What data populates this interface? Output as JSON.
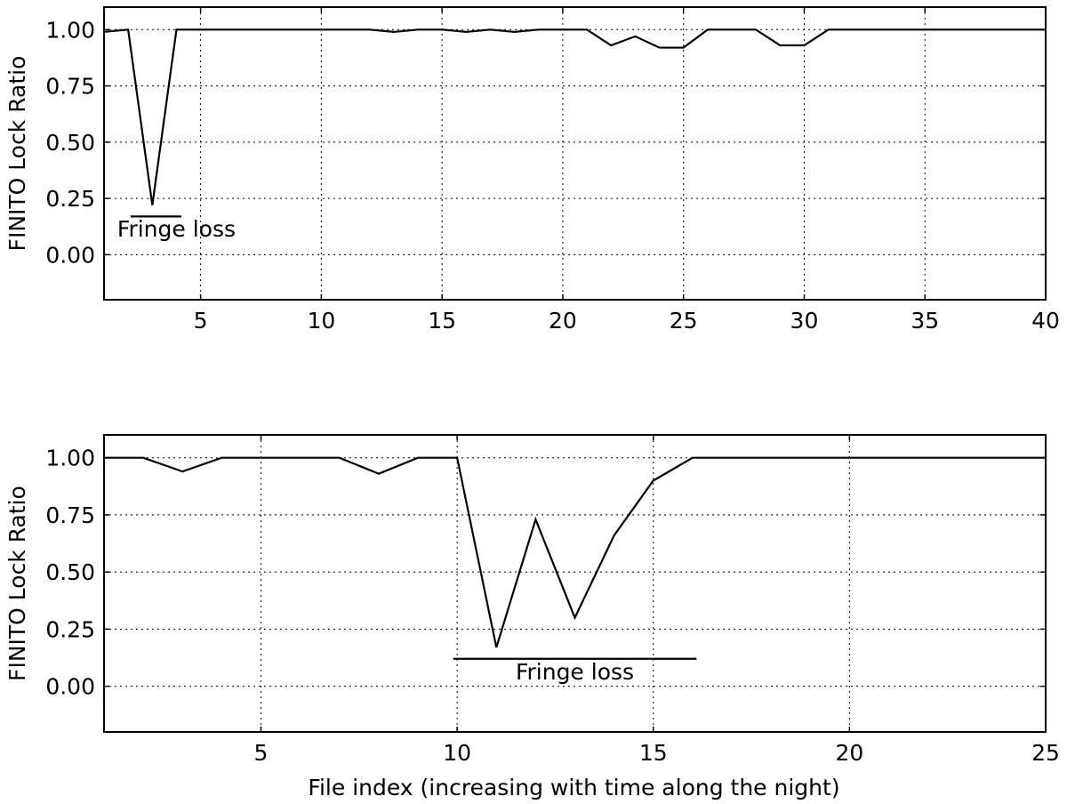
{
  "chart_data": [
    {
      "type": "line",
      "title": "",
      "xlabel": "",
      "ylabel": "FINITO Lock Ratio",
      "xlim": [
        1,
        40
      ],
      "ylim": [
        -0.2,
        1.1
      ],
      "xticks": [
        5,
        10,
        15,
        20,
        25,
        30,
        35,
        40
      ],
      "xtick_labels": [
        "5",
        "10",
        "15",
        "20",
        "25",
        "30",
        "35",
        "40"
      ],
      "yticks": [
        0.0,
        0.25,
        0.5,
        0.75,
        1.0
      ],
      "ytick_labels": [
        "0.00",
        "0.25",
        "0.50",
        "0.75",
        "1.00"
      ],
      "grid": true,
      "series": [
        {
          "x": [
            1,
            2,
            3,
            4,
            5,
            6,
            7,
            8,
            9,
            10,
            11,
            12,
            13,
            14,
            15,
            16,
            17,
            18,
            19,
            20,
            21,
            22,
            23,
            24,
            25,
            26,
            27,
            28,
            29,
            30,
            31,
            32,
            33,
            34,
            35,
            36,
            37,
            38,
            39,
            40
          ],
          "values": [
            0.99,
            1.0,
            0.22,
            1.0,
            1.0,
            1.0,
            1.0,
            1.0,
            1.0,
            1.0,
            1.0,
            1.0,
            0.99,
            1.0,
            1.0,
            0.99,
            1.0,
            0.99,
            1.0,
            1.0,
            1.0,
            0.93,
            0.97,
            0.92,
            0.92,
            1.0,
            1.0,
            1.0,
            0.93,
            0.93,
            1.0,
            1.0,
            1.0,
            1.0,
            1.0,
            1.0,
            1.0,
            1.0,
            1.0,
            1.0
          ]
        }
      ],
      "annotations": [
        {
          "text": "Fringe loss",
          "bar_x": [
            2.1,
            4.2
          ],
          "bar_y": 0.17,
          "text_x": 4.0,
          "text_y": 0.08
        }
      ]
    },
    {
      "type": "line",
      "title": "",
      "xlabel": "File index (increasing with time along the night)",
      "ylabel": "FINITO Lock Ratio",
      "xlim": [
        1,
        25
      ],
      "ylim": [
        -0.2,
        1.1
      ],
      "xticks": [
        5,
        10,
        15,
        20,
        25
      ],
      "xtick_labels": [
        "5",
        "10",
        "15",
        "20",
        "25"
      ],
      "yticks": [
        0.0,
        0.25,
        0.5,
        0.75,
        1.0
      ],
      "ytick_labels": [
        "0.00",
        "0.25",
        "0.50",
        "0.75",
        "1.00"
      ],
      "grid": true,
      "series": [
        {
          "x": [
            1,
            2,
            3,
            4,
            5,
            6,
            7,
            8,
            9,
            10,
            11,
            12,
            13,
            14,
            15,
            16,
            17,
            18,
            19,
            20,
            21,
            22,
            23,
            24,
            25
          ],
          "values": [
            1.0,
            1.0,
            0.94,
            1.0,
            1.0,
            1.0,
            1.0,
            0.93,
            1.0,
            1.0,
            0.17,
            0.73,
            0.3,
            0.66,
            0.9,
            1.0,
            1.0,
            1.0,
            1.0,
            1.0,
            1.0,
            1.0,
            1.0,
            1.0,
            1.0
          ]
        }
      ],
      "annotations": [
        {
          "text": "Fringe loss",
          "bar_x": [
            9.9,
            16.1
          ],
          "bar_y": 0.12,
          "text_x": 13.0,
          "text_y": 0.03
        }
      ]
    }
  ]
}
